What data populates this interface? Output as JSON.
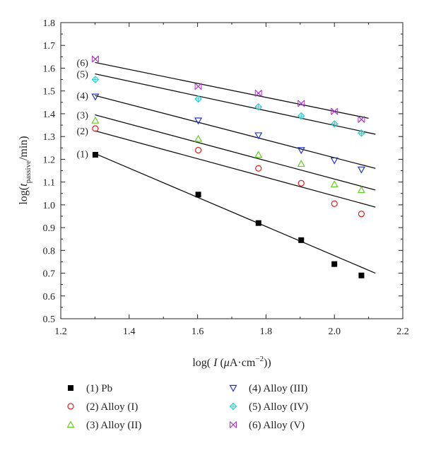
{
  "chart_data": {
    "type": "scatter",
    "xlabel": {
      "prefix": "log( ",
      "italic": "I",
      "mid": " (",
      "mu": "μ",
      "units": "A·cm",
      "sup": "−2",
      "suffix": "))"
    },
    "ylabel": {
      "prefix": "log(",
      "italic": "t",
      "sub": "passive",
      "suffix": "/min)"
    },
    "xlim": [
      1.2,
      2.2
    ],
    "ylim": [
      0.5,
      1.8
    ],
    "xticks": [
      "1.2",
      "1.4",
      "1.6",
      "1.8",
      "2.0",
      "2.2"
    ],
    "yticks": [
      "0.5",
      "0.6",
      "0.7",
      "0.8",
      "0.9",
      "1.0",
      "1.1",
      "1.2",
      "1.3",
      "1.4",
      "1.5",
      "1.6",
      "1.7",
      "1.8"
    ],
    "grid": false,
    "legend_position": "bottom",
    "x": [
      1.301,
      1.602,
      1.778,
      1.903,
      2.0,
      2.079
    ],
    "series": [
      {
        "tag": "(1)",
        "name": "(1) Pb",
        "marker": "filled-square",
        "color": "#000000",
        "values": [
          1.22,
          1.045,
          0.92,
          0.845,
          0.74,
          0.69
        ],
        "fit": [
          [
            1.3,
            1.225
          ],
          [
            2.12,
            0.7
          ]
        ]
      },
      {
        "tag": "(2)",
        "name": "(2) Alloy (I)",
        "marker": "circle",
        "color": "#e0201a",
        "values": [
          1.335,
          1.24,
          1.16,
          1.095,
          1.005,
          0.96
        ],
        "fit": [
          [
            1.3,
            1.325
          ],
          [
            2.12,
            0.99
          ]
        ]
      },
      {
        "tag": "(3)",
        "name": "(3) Alloy (II)",
        "marker": "triangle-up",
        "color": "#66cc22",
        "values": [
          1.37,
          1.29,
          1.22,
          1.18,
          1.09,
          1.065
        ],
        "fit": [
          [
            1.3,
            1.395
          ],
          [
            2.12,
            1.065
          ]
        ]
      },
      {
        "tag": "(4)",
        "name": "(4) Alloy (III)",
        "marker": "triangle-down",
        "color": "#2233cc",
        "values": [
          1.475,
          1.37,
          1.305,
          1.24,
          1.195,
          1.155
        ],
        "fit": [
          [
            1.3,
            1.48
          ],
          [
            2.12,
            1.16
          ]
        ]
      },
      {
        "tag": "(5)",
        "name": "(5) Alloy (IV)",
        "marker": "diamond-plus",
        "color": "#33cccc",
        "values": [
          1.55,
          1.465,
          1.43,
          1.39,
          1.355,
          1.315
        ],
        "fit": [
          [
            1.3,
            1.575
          ],
          [
            2.12,
            1.31
          ]
        ]
      },
      {
        "tag": "(6)",
        "name": "(6) Alloy (V)",
        "marker": "x-bowtie",
        "color": "#aa33cc",
        "values": [
          1.64,
          1.52,
          1.49,
          1.445,
          1.41,
          1.375
        ],
        "fit": [
          [
            1.3,
            1.625
          ],
          [
            2.1,
            1.38
          ]
        ]
      }
    ]
  }
}
